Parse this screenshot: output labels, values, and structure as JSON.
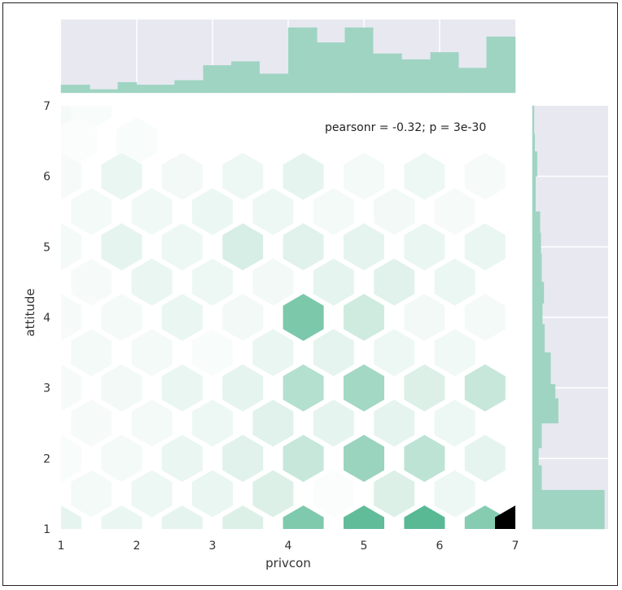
{
  "chart_data": {
    "type": "hexbin-jointplot",
    "xlabel": "privcon",
    "ylabel": "attitude",
    "annotation": "pearsonr = -0.32; p = 3e-30",
    "xlim": [
      1,
      7
    ],
    "ylim": [
      1,
      7
    ],
    "x_ticks": [
      "1",
      "2",
      "3",
      "4",
      "5",
      "6",
      "7"
    ],
    "y_ticks": [
      "1",
      "2",
      "3",
      "4",
      "5",
      "6",
      "7"
    ],
    "colors": {
      "marginal": "#9fd4c2",
      "marginal_bg": "#e8e8f1",
      "hex_dark": "#4fb58e",
      "hex_max": "#000000"
    },
    "marginal_x": {
      "bins": [
        [
          1.0,
          1.38,
          0.12
        ],
        [
          1.38,
          1.75,
          0.05
        ],
        [
          1.75,
          2.0,
          0.16
        ],
        [
          2.0,
          2.5,
          0.12
        ],
        [
          2.5,
          2.88,
          0.19
        ],
        [
          2.88,
          3.25,
          0.42
        ],
        [
          3.25,
          3.62,
          0.48
        ],
        [
          3.62,
          4.0,
          0.29
        ],
        [
          4.0,
          4.38,
          1.0
        ],
        [
          4.38,
          4.75,
          0.77
        ],
        [
          4.75,
          5.12,
          1.0
        ],
        [
          5.12,
          5.5,
          0.6
        ],
        [
          5.5,
          5.88,
          0.51
        ],
        [
          5.88,
          6.25,
          0.62
        ],
        [
          6.25,
          6.62,
          0.38
        ],
        [
          6.62,
          7.0,
          0.86
        ]
      ]
    },
    "marginal_y": {
      "bins": [
        [
          1.0,
          1.55,
          0.95
        ],
        [
          1.55,
          1.9,
          0.12
        ],
        [
          1.9,
          2.15,
          0.08
        ],
        [
          2.15,
          2.5,
          0.12
        ],
        [
          2.5,
          2.85,
          0.34
        ],
        [
          2.85,
          3.05,
          0.3
        ],
        [
          3.05,
          3.5,
          0.24
        ],
        [
          3.5,
          3.9,
          0.16
        ],
        [
          3.9,
          4.2,
          0.13
        ],
        [
          4.2,
          4.5,
          0.15
        ],
        [
          4.5,
          4.9,
          0.12
        ],
        [
          4.9,
          5.2,
          0.11
        ],
        [
          5.2,
          5.5,
          0.1
        ],
        [
          5.5,
          6.0,
          0.04
        ],
        [
          6.0,
          6.35,
          0.06
        ],
        [
          6.35,
          6.6,
          0.03
        ],
        [
          6.6,
          7.0,
          0.02
        ]
      ]
    },
    "hexbins": [
      [
        1.0,
        7.0,
        0.05
      ],
      [
        1.4,
        7.0,
        0.03
      ],
      [
        1.2,
        6.5,
        0.02
      ],
      [
        2.0,
        6.5,
        0.03
      ],
      [
        1.0,
        6.0,
        0.04
      ],
      [
        1.8,
        6.0,
        0.1
      ],
      [
        2.6,
        6.0,
        0.06
      ],
      [
        3.4,
        6.0,
        0.08
      ],
      [
        4.2,
        6.0,
        0.12
      ],
      [
        5.0,
        6.0,
        0.05
      ],
      [
        5.8,
        6.0,
        0.08
      ],
      [
        6.6,
        6.0,
        0.04
      ],
      [
        1.4,
        5.5,
        0.05
      ],
      [
        2.2,
        5.5,
        0.07
      ],
      [
        3.0,
        5.5,
        0.09
      ],
      [
        3.8,
        5.5,
        0.08
      ],
      [
        4.6,
        5.5,
        0.05
      ],
      [
        5.4,
        5.5,
        0.06
      ],
      [
        6.2,
        5.5,
        0.04
      ],
      [
        1.0,
        5.0,
        0.05
      ],
      [
        1.8,
        5.0,
        0.12
      ],
      [
        2.6,
        5.0,
        0.08
      ],
      [
        3.4,
        5.0,
        0.18
      ],
      [
        4.2,
        5.0,
        0.14
      ],
      [
        5.0,
        5.0,
        0.12
      ],
      [
        5.8,
        5.0,
        0.1
      ],
      [
        6.6,
        5.0,
        0.1
      ],
      [
        1.4,
        4.5,
        0.04
      ],
      [
        2.2,
        4.5,
        0.1
      ],
      [
        3.0,
        4.5,
        0.08
      ],
      [
        3.8,
        4.5,
        0.06
      ],
      [
        4.6,
        4.5,
        0.12
      ],
      [
        5.4,
        4.5,
        0.14
      ],
      [
        6.2,
        4.5,
        0.09
      ],
      [
        1.0,
        4.0,
        0.04
      ],
      [
        1.8,
        4.0,
        0.05
      ],
      [
        2.6,
        4.0,
        0.1
      ],
      [
        3.4,
        4.0,
        0.06
      ],
      [
        4.2,
        4.0,
        0.6
      ],
      [
        5.0,
        4.0,
        0.22
      ],
      [
        5.8,
        4.0,
        0.06
      ],
      [
        6.6,
        4.0,
        0.05
      ],
      [
        1.4,
        3.5,
        0.05
      ],
      [
        2.2,
        3.5,
        0.05
      ],
      [
        3.0,
        3.5,
        0.03
      ],
      [
        3.8,
        3.5,
        0.1
      ],
      [
        4.6,
        3.5,
        0.12
      ],
      [
        5.4,
        3.5,
        0.08
      ],
      [
        6.2,
        3.5,
        0.07
      ],
      [
        1.0,
        3.0,
        0.04
      ],
      [
        1.8,
        3.0,
        0.06
      ],
      [
        2.6,
        3.0,
        0.1
      ],
      [
        3.4,
        3.0,
        0.12
      ],
      [
        4.2,
        3.0,
        0.34
      ],
      [
        5.0,
        3.0,
        0.42
      ],
      [
        5.8,
        3.0,
        0.16
      ],
      [
        6.6,
        3.0,
        0.26
      ],
      [
        1.4,
        2.5,
        0.04
      ],
      [
        2.2,
        2.5,
        0.05
      ],
      [
        3.0,
        2.5,
        0.08
      ],
      [
        3.8,
        2.5,
        0.14
      ],
      [
        4.6,
        2.5,
        0.12
      ],
      [
        5.4,
        2.5,
        0.12
      ],
      [
        6.2,
        2.5,
        0.08
      ],
      [
        1.0,
        2.0,
        0.03
      ],
      [
        1.8,
        2.0,
        0.05
      ],
      [
        2.6,
        2.0,
        0.1
      ],
      [
        3.4,
        2.0,
        0.14
      ],
      [
        4.2,
        2.0,
        0.26
      ],
      [
        5.0,
        2.0,
        0.46
      ],
      [
        5.8,
        2.0,
        0.3
      ],
      [
        6.6,
        2.0,
        0.12
      ],
      [
        1.4,
        1.5,
        0.05
      ],
      [
        2.2,
        1.5,
        0.08
      ],
      [
        3.0,
        1.5,
        0.1
      ],
      [
        3.8,
        1.5,
        0.16
      ],
      [
        4.6,
        1.5,
        0.02
      ],
      [
        5.4,
        1.5,
        0.16
      ],
      [
        6.2,
        1.5,
        0.08
      ],
      [
        1.0,
        1.0,
        0.12
      ],
      [
        1.8,
        1.0,
        0.1
      ],
      [
        2.6,
        1.0,
        0.12
      ],
      [
        3.4,
        1.0,
        0.16
      ],
      [
        4.2,
        1.0,
        0.58
      ],
      [
        5.0,
        1.0,
        0.72
      ],
      [
        5.8,
        1.0,
        0.76
      ],
      [
        6.6,
        1.0,
        0.55
      ],
      [
        7.0,
        1.0,
        1.0
      ]
    ]
  }
}
